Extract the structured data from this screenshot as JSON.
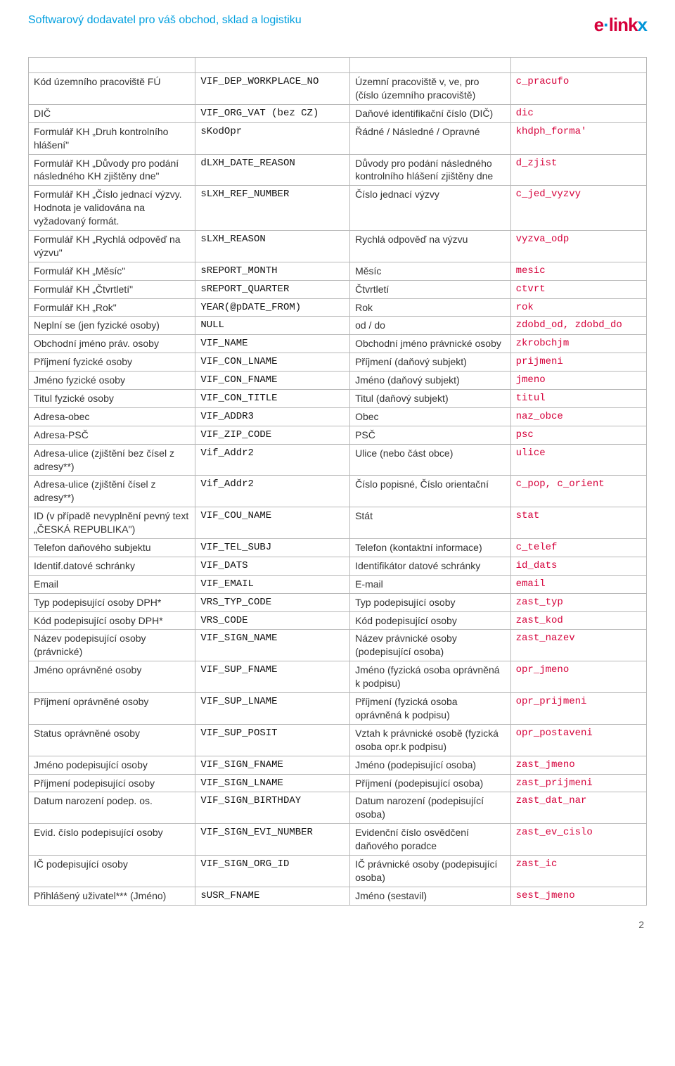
{
  "header": {
    "tagline": "Softwarový dodavatel pro váš obchod, sklad a logistiku",
    "logo_text": "elinkx"
  },
  "footer": {
    "page": "2"
  },
  "rows": [
    {
      "blank": true
    },
    {
      "c1": "Kód územního pracoviště FÚ",
      "c2": "VIF_DEP_WORKPLACE_NO",
      "c3": "Územní pracoviště v, ve, pro (číslo územního pracoviště)",
      "c4": "c_pracufo"
    },
    {
      "c1": "DIČ",
      "c2": "VIF_ORG_VAT (bez CZ)",
      "c3": "Daňové identifikační číslo (DIČ)",
      "c4": "dic"
    },
    {
      "c1": "Formulář KH „Druh kontrolního hlášení\"",
      "c2": "sKodOpr",
      "c3": "Řádné / Následné / Opravné",
      "c4": "khdph_forma'"
    },
    {
      "c1": "Formulář KH „Důvody pro podání následného KH zjištěny dne\"",
      "c2": "dLXH_DATE_REASON",
      "c3": "Důvody pro podání následného kontrolního hlášení zjištěny dne",
      "c4": "d_zjist"
    },
    {
      "c1": "Formulář KH „Číslo jednací výzvy. Hodnota je validována na vyžadovaný formát.",
      "c2": "sLXH_REF_NUMBER",
      "c3": "Číslo jednací výzvy",
      "c4": "c_jed_vyzvy"
    },
    {
      "c1": "Formulář KH „Rychlá odpověď na výzvu\"",
      "c2": "sLXH_REASON",
      "c3": "Rychlá odpověď na výzvu",
      "c4": "vyzva_odp"
    },
    {
      "c1": "Formulář KH „Měsíc\"",
      "c2": "sREPORT_MONTH",
      "c3": "Měsíc",
      "c4": "mesic"
    },
    {
      "c1": "Formulář KH „Čtvrtletí\"",
      "c2": "sREPORT_QUARTER",
      "c3": "Čtvrtletí",
      "c4": "ctvrt"
    },
    {
      "c1": "Formulář KH „Rok\"",
      "c2": "YEAR(@pDATE_FROM)",
      "c3": "Rok",
      "c4": "rok"
    },
    {
      "c1": "Neplní se (jen fyzické osoby)",
      "c2": "NULL",
      "c3": "od / do",
      "c4": "zdobd_od, zdobd_do"
    },
    {
      "c1": "Obchodní jméno práv. osoby",
      "c2": "VIF_NAME",
      "c3": "Obchodní jméno právnické osoby",
      "c4": "zkrobchjm"
    },
    {
      "c1": "Příjmení fyzické osoby",
      "c2": "VIF_CON_LNAME",
      "c3": "Příjmení (daňový subjekt)",
      "c4": "prijmeni"
    },
    {
      "c1": "Jméno fyzické osoby",
      "c2": "VIF_CON_FNAME",
      "c3": "Jméno (daňový subjekt)",
      "c4": "jmeno"
    },
    {
      "c1": "Titul fyzické osoby",
      "c2": "VIF_CON_TITLE",
      "c3": "Titul (daňový subjekt)",
      "c4": "titul"
    },
    {
      "c1": "Adresa-obec",
      "c2": "VIF_ADDR3",
      "c3": "Obec",
      "c4": "naz_obce"
    },
    {
      "c1": "Adresa-PSČ",
      "c2": "VIF_ZIP_CODE",
      "c3": "PSČ",
      "c4": "psc"
    },
    {
      "c1": "Adresa-ulice (zjištění bez čísel z adresy**)",
      "c2": "Vif_Addr2",
      "c3": "Ulice (nebo část obce)",
      "c4": "ulice"
    },
    {
      "c1": "Adresa-ulice (zjištění čísel z adresy**)",
      "c2": "Vif_Addr2",
      "c3": "Číslo popisné, Číslo orientační",
      "c4": "c_pop, c_orient"
    },
    {
      "c1": "ID (v případě nevyplnění pevný text „ČESKÁ REPUBLIKA\")",
      "c2": "VIF_COU_NAME",
      "c3": "Stát",
      "c4": "stat"
    },
    {
      "c1": "Telefon daňového subjektu",
      "c2": "VIF_TEL_SUBJ",
      "c3": "Telefon (kontaktní informace)",
      "c4": "c_telef"
    },
    {
      "c1": "Identif.datové schránky",
      "c2": "VIF_DATS",
      "c3": "Identifikátor datové schránky",
      "c4": "id_dats"
    },
    {
      "c1": "Email",
      "c2": "VIF_EMAIL",
      "c3": "E-mail",
      "c4": "email"
    },
    {
      "c1": "Typ podepisující osoby DPH*",
      "c2": "VRS_TYP_CODE",
      "c3": "Typ podepisující osoby",
      "c4": "zast_typ"
    },
    {
      "c1": "Kód podepisující osoby DPH*",
      "c2": "VRS_CODE",
      "c3": "Kód podepisující osoby",
      "c4": "zast_kod"
    },
    {
      "c1": "Název podepisující osoby (právnické)",
      "c2": "VIF_SIGN_NAME",
      "c3": "Název právnické osoby (podepisující osoba)",
      "c4": "zast_nazev"
    },
    {
      "c1": "Jméno oprávněné osoby",
      "c2": "VIF_SUP_FNAME",
      "c3": "Jméno (fyzická osoba oprávněná k podpisu)",
      "c4": "opr_jmeno"
    },
    {
      "c1": "Příjmení oprávněné osoby",
      "c2": "VIF_SUP_LNAME",
      "c3": "Příjmení (fyzická osoba oprávněná k podpisu)",
      "c4": "opr_prijmeni"
    },
    {
      "c1": "Status oprávněné osoby",
      "c2": "VIF_SUP_POSIT",
      "c3": "Vztah k právnické osobě (fyzická osoba opr.k podpisu)",
      "c4": "opr_postaveni"
    },
    {
      "c1": "Jméno podepisující osoby",
      "c2": "VIF_SIGN_FNAME",
      "c3": "Jméno (podepisující osoba)",
      "c4": "zast_jmeno"
    },
    {
      "c1": "Příjmení podepisující osoby",
      "c2": "VIF_SIGN_LNAME",
      "c3": "Příjmení (podepisující osoba)",
      "c4": "zast_prijmeni"
    },
    {
      "c1": "Datum narození podep. os.",
      "c2": "VIF_SIGN_BIRTHDAY",
      "c3": "Datum narození (podepisující osoba)",
      "c4": "zast_dat_nar"
    },
    {
      "c1": "Evid. číslo podepisující osoby",
      "c2": "VIF_SIGN_EVI_NUMBER",
      "c3": "Evidenční číslo osvědčení daňového poradce",
      "c4": "zast_ev_cislo"
    },
    {
      "c1": "IČ podepisující osoby",
      "c2": "VIF_SIGN_ORG_ID",
      "c3": "IČ právnické osoby (podepisující osoba)",
      "c4": "zast_ic"
    },
    {
      "c1": "Přihlášený uživatel*** (Jméno)",
      "c2": "sUSR_FNAME",
      "c3": "Jméno (sestavil)",
      "c4": "sest_jmeno"
    }
  ]
}
